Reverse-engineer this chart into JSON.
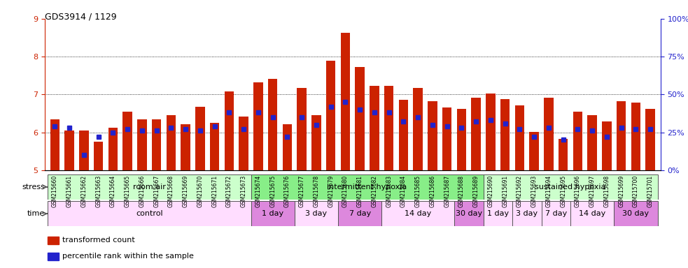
{
  "title": "GDS3914 / 1129",
  "samples": [
    "GSM215660",
    "GSM215661",
    "GSM215662",
    "GSM215663",
    "GSM215664",
    "GSM215665",
    "GSM215666",
    "GSM215667",
    "GSM215668",
    "GSM215669",
    "GSM215670",
    "GSM215671",
    "GSM215672",
    "GSM215673",
    "GSM215674",
    "GSM215675",
    "GSM215676",
    "GSM215677",
    "GSM215678",
    "GSM215679",
    "GSM215680",
    "GSM215681",
    "GSM215682",
    "GSM215683",
    "GSM215684",
    "GSM215685",
    "GSM215686",
    "GSM215687",
    "GSM215688",
    "GSM215689",
    "GSM215690",
    "GSM215691",
    "GSM215692",
    "GSM215693",
    "GSM215694",
    "GSM215695",
    "GSM215696",
    "GSM215697",
    "GSM215698",
    "GSM215699",
    "GSM215700",
    "GSM215701"
  ],
  "red_values": [
    6.35,
    6.05,
    6.05,
    5.75,
    6.12,
    6.55,
    6.35,
    6.35,
    6.45,
    6.22,
    6.68,
    6.25,
    7.08,
    6.42,
    7.32,
    7.42,
    6.22,
    7.18,
    6.45,
    7.9,
    8.62,
    7.72,
    7.22,
    7.22,
    6.85,
    7.18,
    6.82,
    6.65,
    6.62,
    6.92,
    7.02,
    6.88,
    6.72,
    6.02,
    6.92,
    5.82,
    6.55,
    6.45,
    6.28,
    6.82,
    6.78,
    6.62
  ],
  "blue_percentiles": [
    29,
    28,
    10,
    22,
    25,
    27,
    26,
    26,
    28,
    27,
    26,
    29,
    38,
    27,
    38,
    35,
    22,
    35,
    30,
    42,
    45,
    40,
    38,
    38,
    32,
    35,
    30,
    29,
    28,
    32,
    33,
    31,
    27,
    22,
    28,
    20,
    27,
    26,
    22,
    28,
    27,
    27
  ],
  "ylim_left": [
    5,
    9
  ],
  "ylim_right": [
    0,
    100
  ],
  "yticks_left": [
    5,
    6,
    7,
    8,
    9
  ],
  "yticks_right": [
    0,
    25,
    50,
    75,
    100
  ],
  "ytick_labels_right": [
    "0%",
    "25%",
    "50%",
    "75%",
    "100%"
  ],
  "red_color": "#cc2200",
  "blue_color": "#2222cc",
  "stress_groups": [
    {
      "label": "room air",
      "start": 0,
      "end": 14,
      "color": "#ccffcc"
    },
    {
      "label": "intermittent hypoxia",
      "start": 14,
      "end": 30,
      "color": "#88ee88"
    },
    {
      "label": "sustained hypoxia",
      "start": 30,
      "end": 42,
      "color": "#ccffcc"
    }
  ],
  "time_groups": [
    {
      "label": "control",
      "start": 0,
      "end": 14,
      "color": "#ffddff"
    },
    {
      "label": "1 day",
      "start": 14,
      "end": 17,
      "color": "#dd88dd"
    },
    {
      "label": "3 day",
      "start": 17,
      "end": 20,
      "color": "#ffddff"
    },
    {
      "label": "7 day",
      "start": 20,
      "end": 23,
      "color": "#dd88dd"
    },
    {
      "label": "14 day",
      "start": 23,
      "end": 28,
      "color": "#ffddff"
    },
    {
      "label": "30 day",
      "start": 28,
      "end": 30,
      "color": "#dd88dd"
    },
    {
      "label": "1 day",
      "start": 30,
      "end": 32,
      "color": "#ffddff"
    },
    {
      "label": "3 day",
      "start": 32,
      "end": 34,
      "color": "#ffddff"
    },
    {
      "label": "7 day",
      "start": 34,
      "end": 36,
      "color": "#ffddff"
    },
    {
      "label": "14 day",
      "start": 36,
      "end": 39,
      "color": "#ffddff"
    },
    {
      "label": "30 day",
      "start": 39,
      "end": 42,
      "color": "#dd88dd"
    }
  ],
  "bar_width": 0.65,
  "legend_items": [
    {
      "label": "transformed count",
      "color": "#cc2200"
    },
    {
      "label": "percentile rank within the sample",
      "color": "#2222cc"
    }
  ]
}
